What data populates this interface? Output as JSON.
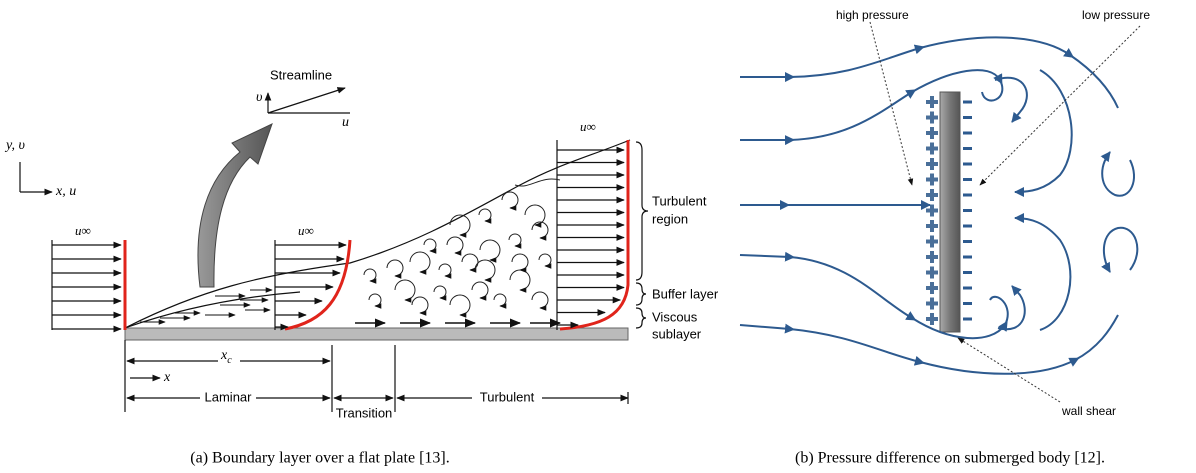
{
  "figures": [
    {
      "streamline": "Streamline",
      "streamline_v": "υ",
      "streamline_u": "u",
      "axis_y": "y, υ",
      "axis_x": "x, u",
      "freestream_labels": [
        "u∞",
        "u∞",
        "u∞"
      ],
      "turbulent_region": [
        "Turbulent",
        "region"
      ],
      "buffer_layer": "Buffer layer",
      "viscous_sublayer": [
        "Viscous",
        "sublayer"
      ],
      "xc": {
        "base": "x",
        "sub": "c"
      },
      "x": "x",
      "laminar": "Laminar",
      "transition": "Transition",
      "turbulent": "Turbulent",
      "caption": "(a) Boundary layer over a flat plate [13]."
    },
    {
      "high_pressure": "high pressure",
      "low_pressure": "low pressure",
      "wall_shear": "wall shear",
      "caption": "(b) Pressure difference on submerged body [12]."
    }
  ]
}
